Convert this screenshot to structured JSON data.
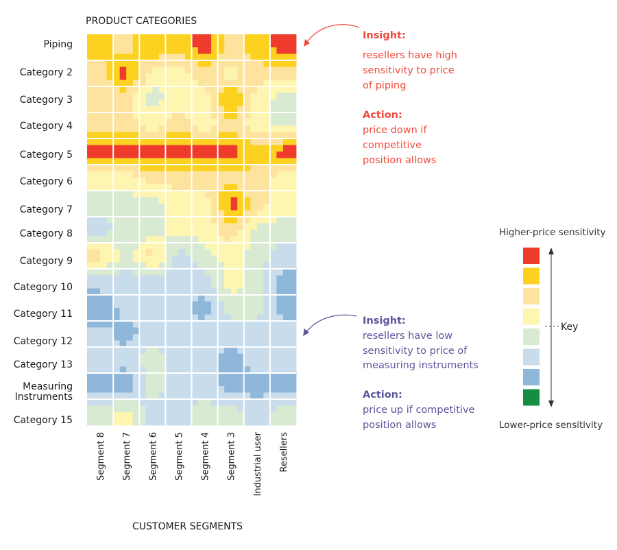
{
  "chart_data": {
    "type": "heatmap",
    "title": "",
    "ylabel": "PRODUCT CATEGORIES",
    "xlabel": "CUSTOMER SEGMENTS",
    "rows": [
      "Piping",
      "Category 2",
      "Category 3",
      "Category 4",
      "Category 5",
      "Category 6",
      "Category 7",
      "Category 8",
      "Category 9",
      "Category 10",
      "Category 11",
      "Category 12",
      "Category 13",
      "Measuring Instruments",
      "Category 15"
    ],
    "columns": [
      "Segment 8",
      "Segment 7",
      "Segment 6",
      "Segment 5",
      "Segment 4",
      "Segment 3",
      "Industrial user",
      "Resellers"
    ],
    "level_scale": "1 = lowest price sensitivity, 8 = highest price sensitivity",
    "values": [
      [
        7,
        6,
        7.5,
        7,
        8,
        6,
        7,
        8
      ],
      [
        6,
        8,
        5,
        5,
        6,
        5,
        6,
        6
      ],
      [
        6,
        6,
        4,
        5,
        5,
        8,
        5,
        4
      ],
      [
        6,
        6,
        5,
        6,
        5,
        6,
        5,
        4
      ],
      [
        8,
        8,
        8,
        8,
        8,
        8,
        7,
        8
      ],
      [
        5,
        5,
        6,
        6,
        6,
        6,
        6,
        5
      ],
      [
        4,
        4,
        4,
        5,
        5,
        8,
        6,
        5
      ],
      [
        3,
        4,
        4,
        5,
        5,
        6,
        4,
        4
      ],
      [
        6,
        4,
        6,
        3,
        4,
        5,
        4,
        3
      ],
      [
        3,
        3,
        3,
        3,
        3,
        5,
        4,
        2
      ],
      [
        1.5,
        3,
        3,
        3,
        2,
        4,
        4,
        2
      ],
      [
        3,
        2,
        3,
        3,
        3,
        3,
        3,
        3
      ],
      [
        3,
        3,
        4,
        3,
        3,
        2,
        3,
        3
      ],
      [
        2,
        1.5,
        4,
        3,
        3,
        2,
        2,
        2
      ],
      [
        4,
        5,
        3,
        3,
        4,
        4,
        3,
        4
      ]
    ],
    "legend": {
      "top_label": "Higher-price sensitivity",
      "bottom_label": "Lower-price sensitivity",
      "key_label": "Key",
      "colors": [
        "#ef3b2c",
        "#fcd11f",
        "#fde39e",
        "#fdf5b0",
        "#d8ead2",
        "#c9dcec",
        "#8fb7da",
        "#138e42"
      ]
    },
    "grid": true
  },
  "annotations": {
    "top": {
      "color": "#ef4a3c",
      "insight_label": "Insight:",
      "insight_lines": [
        "resellers have high",
        "sensitivity to price",
        "of piping"
      ],
      "action_label": "Action:",
      "action_lines": [
        "price down if",
        "competitive",
        "position allows"
      ]
    },
    "bottom": {
      "color": "#5a559c",
      "insight_label": "Insight:",
      "insight_lines": [
        "resellers have low",
        "sensitivity to price of",
        "measuring instruments"
      ],
      "action_label": "Action:",
      "action_lines": [
        "price up if competitive",
        "position allows"
      ]
    }
  },
  "row_label_lines": {
    "measuring": [
      "Measuring",
      "Instruments"
    ]
  }
}
